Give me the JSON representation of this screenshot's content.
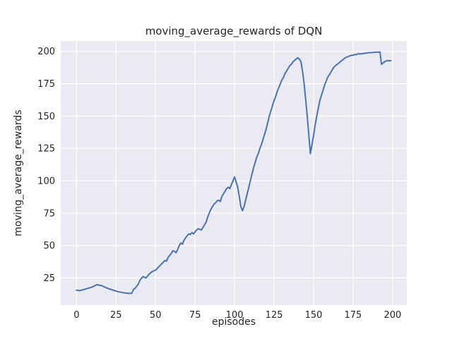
{
  "chart_data": {
    "type": "line",
    "title": "moving_average_rewards of DQN",
    "xlabel": "episodes",
    "ylabel": "moving_average_rewards",
    "xlim": [
      -10,
      209
    ],
    "ylim": [
      4,
      208
    ],
    "xticks": [
      0,
      25,
      50,
      75,
      100,
      125,
      150,
      175,
      200
    ],
    "yticks": [
      25,
      50,
      75,
      100,
      125,
      150,
      175,
      200
    ],
    "grid": true,
    "legend": "none",
    "style": "seaborn-darkgrid",
    "colors": {
      "line": "#4C72B0",
      "plot_bg": "#EAEAF2",
      "grid": "#FFFFFF",
      "figure_bg": "#FFFFFF",
      "text": "#262626"
    },
    "series_name": "moving_average_rewards",
    "x": [
      0,
      2,
      4,
      6,
      8,
      10,
      12,
      13,
      14,
      16,
      18,
      20,
      22,
      24,
      26,
      28,
      30,
      32,
      34,
      35,
      36,
      37,
      38,
      39,
      40,
      41,
      42,
      43,
      44,
      45,
      46,
      47,
      48,
      50,
      52,
      54,
      56,
      57,
      58,
      60,
      61,
      62,
      63,
      64,
      65,
      66,
      67,
      68,
      69,
      70,
      71,
      72,
      73,
      74,
      75,
      76,
      77,
      78,
      79,
      80,
      81,
      82,
      83,
      84,
      85,
      86,
      87,
      88,
      89,
      90,
      91,
      92,
      93,
      94,
      95,
      96,
      97,
      98,
      99,
      100,
      101,
      102,
      103,
      104,
      105,
      106,
      107,
      108,
      109,
      110,
      111,
      112,
      113,
      114,
      115,
      116,
      117,
      118,
      119,
      120,
      121,
      122,
      123,
      124,
      125,
      126,
      127,
      128,
      129,
      130,
      131,
      132,
      133,
      134,
      135,
      136,
      137,
      138,
      139,
      140,
      141,
      142,
      143,
      144,
      145,
      146,
      147,
      148,
      149,
      150,
      151,
      152,
      153,
      154,
      155,
      156,
      157,
      158,
      159,
      160,
      161,
      162,
      163,
      164,
      165,
      166,
      167,
      168,
      169,
      170,
      171,
      172,
      173,
      174,
      175,
      176,
      177,
      178,
      179,
      180,
      181,
      182,
      183,
      184,
      185,
      186,
      187,
      188,
      189,
      190,
      191,
      192,
      193,
      194,
      195,
      196,
      197,
      198,
      199
    ],
    "y": [
      15.5,
      15.2,
      15.8,
      16.5,
      17.2,
      18,
      19.2,
      19.8,
      19.5,
      19,
      17.8,
      16.8,
      16,
      15.2,
      14.5,
      14,
      13.5,
      13.2,
      13,
      13.2,
      16,
      17,
      18.5,
      20,
      23,
      24.5,
      26,
      25.5,
      25,
      26.5,
      28,
      29,
      30,
      31,
      33.5,
      36,
      38.5,
      38,
      41,
      44,
      46,
      45.5,
      44.5,
      47,
      50,
      52,
      51,
      54,
      56,
      57.5,
      59,
      58.5,
      60,
      59,
      60.5,
      62,
      63,
      62.5,
      62,
      64,
      66,
      68,
      72,
      75,
      78,
      80,
      82,
      83,
      84.5,
      85,
      84,
      88,
      90,
      92,
      94,
      95,
      94,
      97,
      100,
      103,
      99,
      95,
      88,
      80,
      77,
      80,
      85,
      90,
      95,
      100,
      105,
      110,
      114,
      118,
      121,
      125,
      128,
      132,
      136,
      140,
      145,
      150,
      154,
      158,
      162,
      165,
      169,
      172,
      175,
      178,
      180,
      183,
      185,
      187,
      189,
      190,
      192,
      193,
      194,
      195,
      194,
      192,
      185,
      175,
      163,
      150,
      135,
      121,
      128,
      135,
      143,
      150,
      156,
      162,
      166,
      170,
      174,
      177,
      180,
      182,
      184,
      186,
      188,
      189,
      190,
      191,
      192,
      193,
      194,
      195,
      195.5,
      196,
      196.5,
      197,
      197,
      197.5,
      197.5,
      198,
      198,
      198,
      198.2,
      198.5,
      198.5,
      198.7,
      199,
      199,
      199,
      199.2,
      199.3,
      199.3,
      199.4,
      199.5,
      190,
      191,
      192,
      192.5,
      193,
      192.5,
      192.8
    ]
  }
}
